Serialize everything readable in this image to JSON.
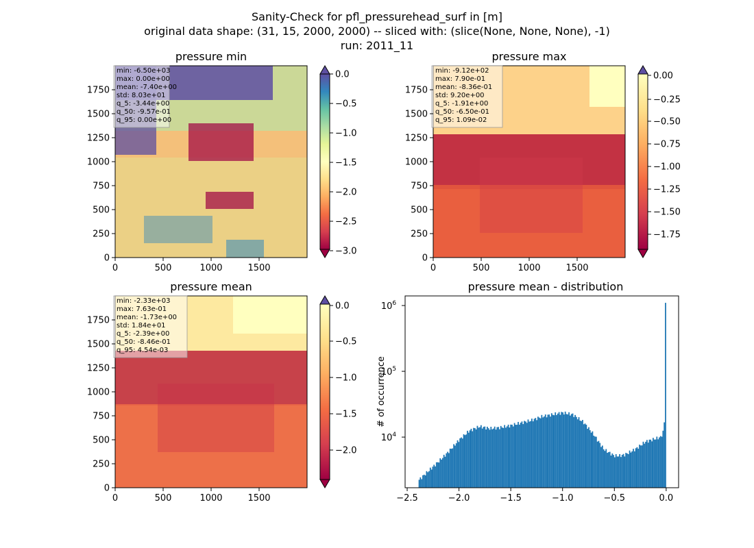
{
  "figure": {
    "title_lines": [
      "Sanity-Check for pfl_pressurehead_surf in [m]",
      "original data shape: (31, 15, 2000, 2000) -- sliced with: (slice(None, None, None), -1)",
      "run: 2011_11"
    ]
  },
  "chart_data": [
    {
      "type": "heatmap",
      "title": "pressure min",
      "colormap": "Spectral",
      "x_ticks": [
        0,
        500,
        1000,
        1500
      ],
      "y_ticks": [
        0,
        250,
        500,
        750,
        1000,
        1250,
        1500,
        1750
      ],
      "xlim": [
        0,
        2000
      ],
      "ylim": [
        0,
        2000
      ],
      "colorbar": {
        "ticks": [
          "0.0",
          "-0.5",
          "-1.0",
          "-1.5",
          "-2.0",
          "-2.5",
          "-3.0"
        ],
        "range": [
          -3.4,
          0.0
        ],
        "extend": "both"
      },
      "stats": [
        "min: -6.50e+03",
        "max: 0.00e+00",
        "mean: -7.40e+00",
        "std: 8.03e+01",
        "q_5: -3.44e+00",
        "q_50: -9.57e-01",
        "q_95: 0.00e+00"
      ]
    },
    {
      "type": "heatmap",
      "title": "pressure max",
      "colormap": "Spectral",
      "x_ticks": [
        0,
        500,
        1000,
        1500
      ],
      "y_ticks": [
        0,
        250,
        500,
        750,
        1000,
        1250,
        1500,
        1750
      ],
      "xlim": [
        0,
        2000
      ],
      "ylim": [
        0,
        2000
      ],
      "colorbar": {
        "ticks": [
          "0.00",
          "-0.25",
          "-0.50",
          "-0.75",
          "-1.00",
          "-1.25",
          "-1.50",
          "-1.75"
        ],
        "range": [
          -1.91,
          0.0
        ],
        "extend": "both"
      },
      "stats": [
        "min: -9.12e+02",
        "max: 7.90e-01",
        "mean: -8.36e-01",
        "std: 9.20e+00",
        "q_5: -1.91e+00",
        "q_50: -6.50e-01",
        "q_95: 1.09e-02"
      ]
    },
    {
      "type": "heatmap",
      "title": "pressure mean",
      "colormap": "Spectral",
      "x_ticks": [
        0,
        500,
        1000,
        1500
      ],
      "y_ticks": [
        0,
        250,
        500,
        750,
        1000,
        1250,
        1500,
        1750
      ],
      "xlim": [
        0,
        2000
      ],
      "ylim": [
        0,
        2000
      ],
      "colorbar": {
        "ticks": [
          "0.0",
          "-0.5",
          "-1.0",
          "-1.5",
          "-2.0"
        ],
        "range": [
          -2.39,
          0.0
        ],
        "extend": "both"
      },
      "stats": [
        "min: -2.33e+03",
        "max: 7.63e-01",
        "mean: -1.73e+00",
        "std: 1.84e+01",
        "q_5: -2.39e+00",
        "q_50: -8.46e-01",
        "q_95: 4.54e-03"
      ]
    },
    {
      "type": "bar",
      "title": "pressure mean - distribution",
      "ylabel": "# of occurrence",
      "yscale": "log",
      "ylim": [
        1700,
        1400000
      ],
      "xlim": [
        -2.52,
        0.12
      ],
      "x_ticks": [
        -2.5,
        -2.0,
        -1.5,
        -1.0,
        -0.5,
        0.0
      ],
      "x_tick_labels": [
        "−2.5",
        "−2.0",
        "−1.5",
        "−1.0",
        "−0.5",
        "0.0"
      ],
      "y_ticks": [
        10000,
        100000,
        1000000
      ],
      "bar_color": "#1f77b4",
      "profile": [
        [
          -2.39,
          2200
        ],
        [
          -2.3,
          3000
        ],
        [
          -2.2,
          4200
        ],
        [
          -2.1,
          6000
        ],
        [
          -2.0,
          9000
        ],
        [
          -1.9,
          12500
        ],
        [
          -1.8,
          14500
        ],
        [
          -1.7,
          13500
        ],
        [
          -1.6,
          14000
        ],
        [
          -1.5,
          15000
        ],
        [
          -1.4,
          16500
        ],
        [
          -1.3,
          18000
        ],
        [
          -1.2,
          20500
        ],
        [
          -1.1,
          22000
        ],
        [
          -1.0,
          23500
        ],
        [
          -0.9,
          22000
        ],
        [
          -0.8,
          17000
        ],
        [
          -0.7,
          11000
        ],
        [
          -0.6,
          6500
        ],
        [
          -0.5,
          5200
        ],
        [
          -0.45,
          5200
        ],
        [
          -0.4,
          5400
        ],
        [
          -0.3,
          6500
        ],
        [
          -0.2,
          8500
        ],
        [
          -0.1,
          9500
        ],
        [
          -0.05,
          10000
        ],
        [
          -0.03,
          12000
        ],
        [
          -0.015,
          18000
        ],
        [
          -0.002,
          1100000
        ]
      ]
    }
  ]
}
